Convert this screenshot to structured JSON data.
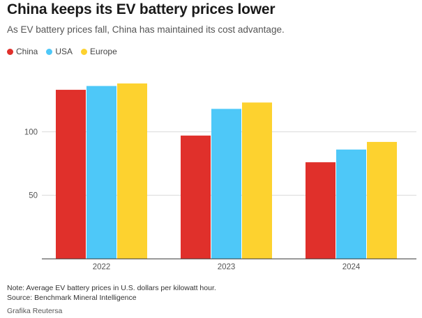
{
  "header": {
    "title": "China keeps its EV battery prices lower",
    "subtitle": "As EV battery prices fall, China has maintained its cost advantage."
  },
  "footer": {
    "note": "Note: Average EV battery prices in U.S. dollars per kilowatt hour.",
    "source": "Source: Benchmark Mineral Intelligence",
    "credit": "Grafika Reutersa"
  },
  "chart_data": {
    "type": "bar",
    "title": "China keeps its EV battery prices lower",
    "xlabel": "",
    "ylabel": "",
    "categories": [
      "2022",
      "2023",
      "2024"
    ],
    "series": [
      {
        "name": "China",
        "color": "#e0302b",
        "values": [
          133,
          97,
          76
        ]
      },
      {
        "name": "USA",
        "color": "#4ec8f8",
        "values": [
          136,
          118,
          86
        ]
      },
      {
        "name": "Europe",
        "color": "#fdd22f",
        "values": [
          138,
          123,
          92
        ]
      }
    ],
    "ylim": [
      0,
      150
    ],
    "yticks": [
      50,
      100
    ],
    "grid": true,
    "legend_position": "top-left"
  }
}
